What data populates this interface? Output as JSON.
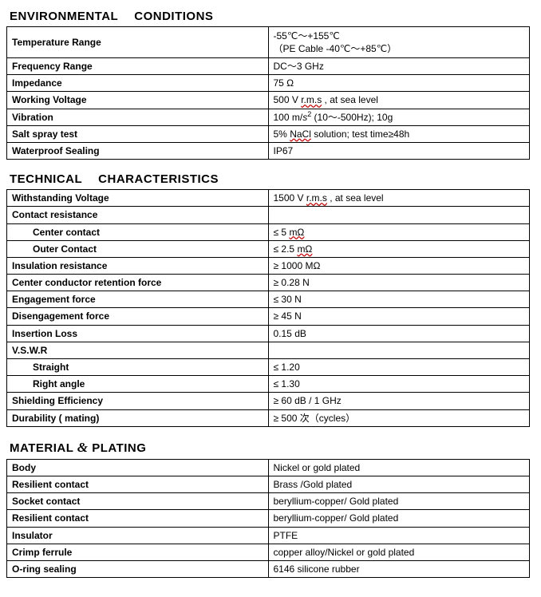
{
  "sections": {
    "env": {
      "title_w1": "ENVIRONMENTAL",
      "title_w2": "CONDITIONS",
      "rows": {
        "temp": {
          "label": "Temperature Range",
          "value": "-55℃～+155℃\n（PE Cable -40℃～+85℃）"
        },
        "freq": {
          "label": "Frequency Range",
          "value": "DC～3 GHz"
        },
        "imp": {
          "label": "Impedance",
          "value": "75 Ω"
        },
        "voltage": {
          "label": "Working Voltage",
          "value_pre": "500 V   ",
          "value_sq": "r.m.s",
          "value_post": " , at sea level"
        },
        "vib": {
          "label": "Vibration",
          "value_pre": "100 m/",
          "value_sup": "s",
          "value_sup2": "2",
          "value_post": "  (10～-500Hz);    10g"
        },
        "salt": {
          "label": "Salt spray test",
          "value_pre": "5% ",
          "value_sq": "NaCl",
          "value_post": " solution; test time≥48h"
        },
        "ip": {
          "label": "Waterproof Sealing",
          "value": "IP67"
        }
      }
    },
    "tech": {
      "title_w1": "TECHNICAL",
      "title_w2": "CHARACTERISTICS",
      "rows": {
        "withstand": {
          "label": "Withstanding Voltage",
          "value_pre": "1500 V    ",
          "value_sq": "r.m.s",
          "value_post": " ,    at sea level"
        },
        "contact_hdr": {
          "label": "Contact resistance",
          "value": ""
        },
        "center_c": {
          "label": "Center contact",
          "value_pre": "≤ 5    ",
          "value_sq": "mΩ"
        },
        "outer_c": {
          "label": "Outer Contact",
          "value_pre": "≤ 2.5 ",
          "value_sq": "mΩ"
        },
        "insul": {
          "label": "Insulation resistance",
          "value": "≥ 1000 MΩ"
        },
        "retention": {
          "label": "Center conductor retention force",
          "value": "≥ 0.28 N"
        },
        "engage": {
          "label": "Engagement force",
          "value": "≤ 30 N"
        },
        "diseng": {
          "label": "Disengagement force",
          "value": "≥ 45 N"
        },
        "insloss": {
          "label": "Insertion Loss",
          "value": "0.15 dB"
        },
        "vswr_hdr": {
          "label": "V.S.W.R",
          "value": ""
        },
        "straight": {
          "label": "Straight",
          "value": "≤ 1.20"
        },
        "rangle": {
          "label": "Right angle",
          "value": "≤ 1.30"
        },
        "shield": {
          "label": "Shielding Efficiency",
          "value": "≥ 60 dB / 1 GHz"
        },
        "dura": {
          "label": "Durability    ( mating)",
          "value": "≥ 500 次（cycles）"
        }
      }
    },
    "mat": {
      "title_w1": "MATERIAL",
      "title_amp": "&",
      "title_w2": "PLATING",
      "rows": {
        "body": {
          "label": "Body",
          "value": "Nickel or gold plated"
        },
        "resil1": {
          "label": "Resilient contact",
          "value": "Brass /Gold plated"
        },
        "socket": {
          "label": "Socket contact",
          "value": "beryllium-copper/ Gold plated"
        },
        "resil2": {
          "label": "Resilient contact",
          "value": "beryllium-copper/ Gold plated"
        },
        "insula": {
          "label": "Insulator",
          "value": "PTFE"
        },
        "crimp": {
          "label": "Crimp ferrule",
          "value": "copper alloy/Nickel or gold plated"
        },
        "oring": {
          "label": "O-ring sealing",
          "value": "6146 silicone rubber"
        }
      }
    }
  }
}
